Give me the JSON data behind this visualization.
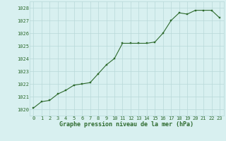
{
  "x": [
    0,
    1,
    2,
    3,
    4,
    5,
    6,
    7,
    8,
    9,
    10,
    11,
    12,
    13,
    14,
    15,
    16,
    17,
    18,
    19,
    20,
    21,
    22,
    23
  ],
  "y": [
    1020.1,
    1020.6,
    1020.7,
    1021.2,
    1021.5,
    1021.9,
    1022.0,
    1022.1,
    1022.8,
    1023.5,
    1024.0,
    1025.2,
    1025.2,
    1025.2,
    1025.2,
    1025.3,
    1026.0,
    1027.0,
    1027.6,
    1027.5,
    1027.8,
    1027.8,
    1027.8,
    1027.2
  ],
  "line_color": "#2d6a2d",
  "marker_color": "#2d6a2d",
  "bg_color": "#d8f0f0",
  "grid_color": "#b8d8d8",
  "xlabel": "Graphe pression niveau de la mer (hPa)",
  "xlabel_color": "#2d6a2d",
  "tick_color": "#2d6a2d",
  "ylim": [
    1019.5,
    1028.5
  ],
  "yticks": [
    1020,
    1021,
    1022,
    1023,
    1024,
    1025,
    1026,
    1027,
    1028
  ],
  "xlim": [
    -0.5,
    23.5
  ],
  "xticks": [
    0,
    1,
    2,
    3,
    4,
    5,
    6,
    7,
    8,
    9,
    10,
    11,
    12,
    13,
    14,
    15,
    16,
    17,
    18,
    19,
    20,
    21,
    22,
    23
  ]
}
